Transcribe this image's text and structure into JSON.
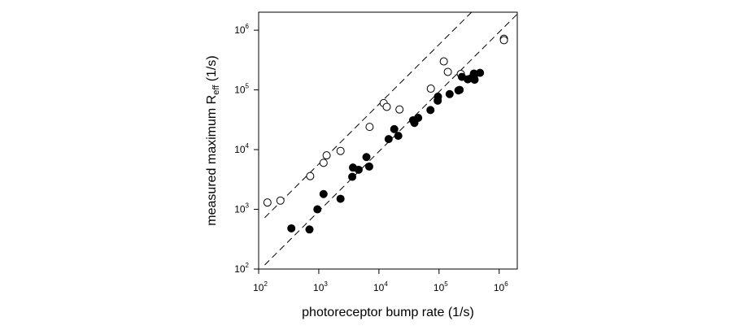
{
  "chart_data": {
    "type": "scatter",
    "xlabel": "photoreceptor bump rate (1/s)",
    "ylabel_main": "measured maximum R",
    "ylabel_sub": "eff",
    "ylabel_tail": " (1/s)",
    "xscale": "log",
    "yscale": "log",
    "xlim": [
      100,
      2000000
    ],
    "ylim": [
      100,
      2000000
    ],
    "grid": false,
    "x_ticks": [
      {
        "base": "10",
        "exp": "2",
        "value": 100
      },
      {
        "base": "10",
        "exp": "3",
        "value": 1000
      },
      {
        "base": "10",
        "exp": "4",
        "value": 10000
      },
      {
        "base": "10",
        "exp": "5",
        "value": 100000
      },
      {
        "base": "10",
        "exp": "6",
        "value": 1000000
      }
    ],
    "y_ticks": [
      {
        "base": "10",
        "exp": "2",
        "value": 100
      },
      {
        "base": "10",
        "exp": "3",
        "value": 1000
      },
      {
        "base": "10",
        "exp": "4",
        "value": 10000
      },
      {
        "base": "10",
        "exp": "5",
        "value": 100000
      },
      {
        "base": "10",
        "exp": "6",
        "value": 1000000
      }
    ],
    "reference_lines": [
      {
        "style": "dashed",
        "points": [
          [
            126,
            724
          ],
          [
            2000000,
            11500000
          ]
        ]
      },
      {
        "style": "dashed",
        "points": [
          [
            126,
            117
          ],
          [
            2000000,
            1860000
          ]
        ]
      }
    ],
    "series": [
      {
        "marker": "open-circle",
        "points": [
          [
            140,
            1300
          ],
          [
            230,
            1400
          ],
          [
            720,
            3600
          ],
          [
            1200,
            6000
          ],
          [
            1350,
            8000
          ],
          [
            2300,
            9500
          ],
          [
            7000,
            24000
          ],
          [
            12000,
            60000
          ],
          [
            13500,
            52000
          ],
          [
            22000,
            47000
          ],
          [
            73000,
            105000
          ],
          [
            120000,
            300000
          ],
          [
            140000,
            200000
          ],
          [
            230000,
            185000
          ],
          [
            1200000,
            720000
          ],
          [
            1200000,
            680000
          ]
        ]
      },
      {
        "marker": "filled-circle",
        "points": [
          [
            350,
            480
          ],
          [
            700,
            460
          ],
          [
            950,
            1000
          ],
          [
            1200,
            1800
          ],
          [
            2300,
            1500
          ],
          [
            3600,
            3500
          ],
          [
            3700,
            5000
          ],
          [
            4600,
            4600
          ],
          [
            6200,
            7500
          ],
          [
            6900,
            5200
          ],
          [
            14500,
            15000
          ],
          [
            18000,
            22000
          ],
          [
            21000,
            17000
          ],
          [
            37000,
            31000
          ],
          [
            39000,
            28000
          ],
          [
            45000,
            34000
          ],
          [
            72000,
            46000
          ],
          [
            95000,
            66000
          ],
          [
            96000,
            77000
          ],
          [
            150000,
            85000
          ],
          [
            210000,
            98000
          ],
          [
            220000,
            100000
          ],
          [
            240000,
            165000
          ],
          [
            300000,
            150000
          ],
          [
            345000,
            158000
          ],
          [
            380000,
            188000
          ],
          [
            380000,
            166000
          ],
          [
            390000,
            148000
          ],
          [
            480000,
            193000
          ]
        ]
      }
    ]
  }
}
